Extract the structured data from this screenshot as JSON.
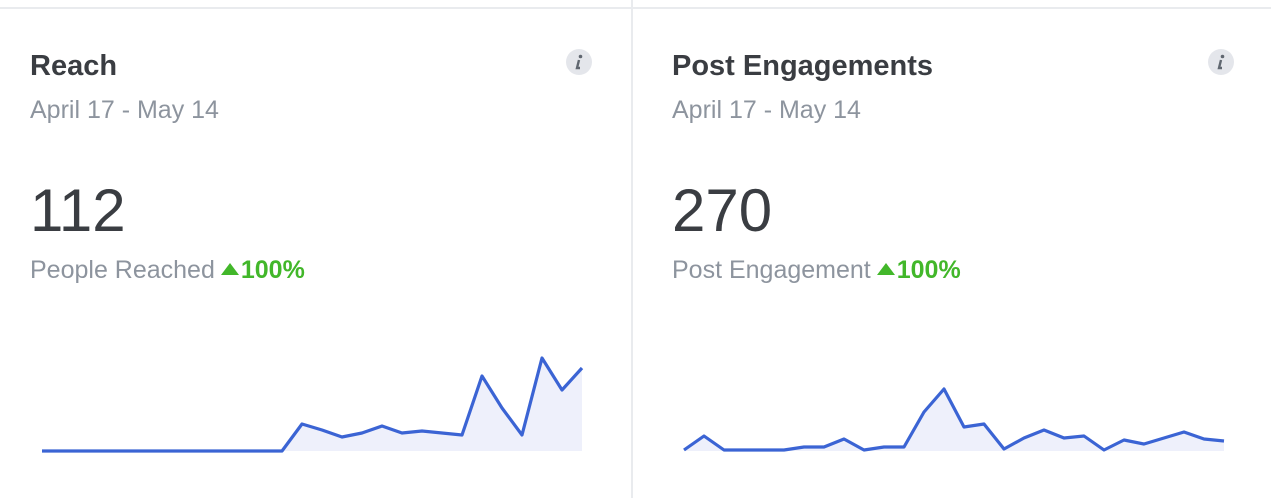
{
  "cards": [
    {
      "title": "Reach",
      "date_range": "April 17 - May 14",
      "value": "112",
      "metric": "People Reached",
      "change": "100%",
      "sparkline": {
        "type": "line",
        "color": "#3b64d4",
        "fill": "#eef0fb",
        "ylim": [
          0,
          100
        ],
        "values": [
          0,
          0,
          0,
          0,
          0,
          0,
          0,
          0,
          0,
          0,
          0,
          0,
          0,
          27,
          21,
          14,
          18,
          25,
          18,
          20,
          18,
          16,
          75,
          43,
          16,
          93,
          61,
          83
        ]
      }
    },
    {
      "title": "Post Engagements",
      "date_range": "April 17 - May 14",
      "value": "270",
      "metric": "Post Engagement",
      "change": "100%",
      "sparkline": {
        "type": "line",
        "color": "#3b64d4",
        "fill": "#eef0fb",
        "ylim": [
          0,
          100
        ],
        "values": [
          1,
          15,
          1,
          1,
          1,
          1,
          4,
          4,
          12,
          1,
          4,
          4,
          39,
          62,
          24,
          27,
          2,
          13,
          21,
          13,
          15,
          1,
          11,
          7,
          13,
          19,
          12,
          10
        ]
      }
    }
  ]
}
